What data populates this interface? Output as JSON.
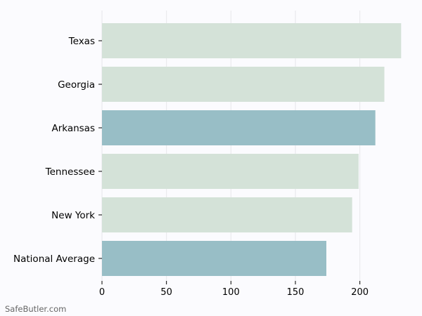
{
  "chart_data": {
    "type": "bar",
    "orientation": "horizontal",
    "title": "",
    "xlabel": "",
    "ylabel": "",
    "xlim": [
      0,
      240
    ],
    "xticks": [
      0,
      50,
      100,
      150,
      200
    ],
    "grid": true,
    "categories": [
      "Texas",
      "Georgia",
      "Arkansas",
      "Tennessee",
      "New York",
      "National Average"
    ],
    "values": [
      232,
      219,
      212,
      199,
      194,
      174
    ],
    "colors": [
      "#d4e2d8",
      "#d4e2d8",
      "#98bec6",
      "#d4e2d8",
      "#d4e2d8",
      "#98bec6"
    ]
  },
  "watermark": "SafeButler.com",
  "theme": {
    "background": "#fbfbfe",
    "grid_color": "#e6e6ea",
    "text_color": "#000000"
  }
}
